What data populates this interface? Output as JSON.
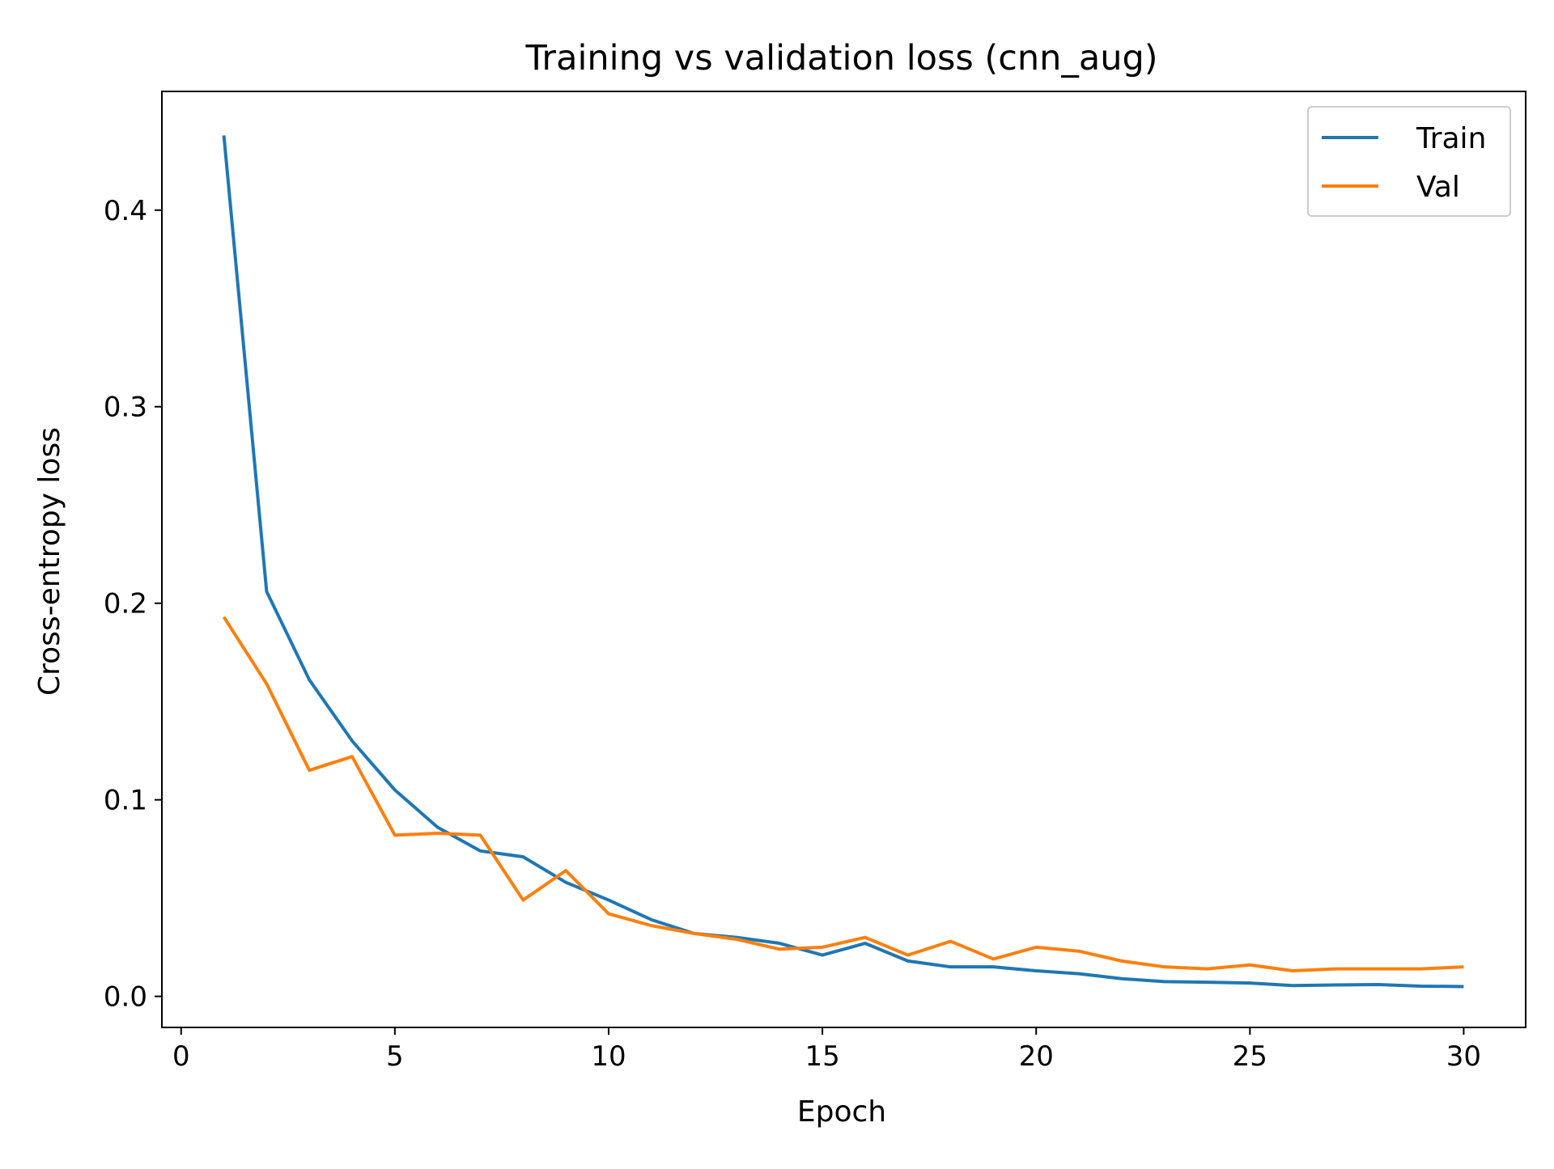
{
  "chart_data": {
    "type": "line",
    "title": "Training vs validation loss (cnn_aug)",
    "xlabel": "Epoch",
    "ylabel": "Cross-entropy loss",
    "xlim": [
      -0.45,
      31.45
    ],
    "ylim": [
      -0.0158,
      0.4604
    ],
    "xticks": [
      0,
      5,
      10,
      15,
      20,
      25,
      30
    ],
    "xtick_labels": [
      "0",
      "5",
      "10",
      "15",
      "20",
      "25",
      "30"
    ],
    "yticks": [
      0.0,
      0.1,
      0.2,
      0.3,
      0.4
    ],
    "ytick_labels": [
      "0.0",
      "0.1",
      "0.2",
      "0.3",
      "0.4"
    ],
    "grid": false,
    "legend_position": "top-right",
    "x": [
      1,
      2,
      3,
      4,
      5,
      6,
      7,
      8,
      9,
      10,
      11,
      12,
      13,
      14,
      15,
      16,
      17,
      18,
      19,
      20,
      21,
      22,
      23,
      24,
      25,
      26,
      27,
      28,
      29,
      30
    ],
    "series": [
      {
        "name": "Train",
        "color": "#1f77b4",
        "values": [
          0.438,
          0.206,
          0.161,
          0.13,
          0.105,
          0.086,
          0.074,
          0.071,
          0.058,
          0.049,
          0.039,
          0.032,
          0.03,
          0.027,
          0.021,
          0.027,
          0.018,
          0.015,
          0.015,
          0.013,
          0.0115,
          0.009,
          0.0075,
          0.0072,
          0.0068,
          0.0055,
          0.0058,
          0.006,
          0.0052,
          0.005
        ]
      },
      {
        "name": "Val",
        "color": "#ff7f0e",
        "values": [
          0.193,
          0.159,
          0.115,
          0.122,
          0.082,
          0.083,
          0.082,
          0.049,
          0.064,
          0.042,
          0.036,
          0.032,
          0.029,
          0.024,
          0.025,
          0.03,
          0.021,
          0.028,
          0.019,
          0.025,
          0.023,
          0.018,
          0.015,
          0.014,
          0.016,
          0.013,
          0.014,
          0.014,
          0.014,
          0.015
        ]
      }
    ]
  }
}
